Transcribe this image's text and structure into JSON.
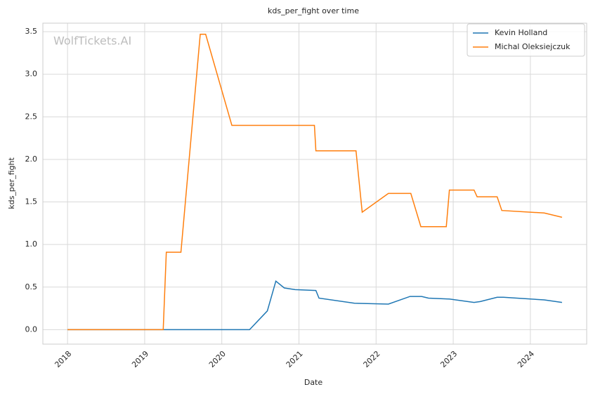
{
  "chart_data": {
    "type": "line",
    "title": "kds_per_fight over time",
    "xlabel": "Date",
    "ylabel": "kds_per_fight",
    "watermark": "WolfTickets.AI",
    "grid": true,
    "legend": "upper right",
    "xlim": [
      2017.68,
      2024.73
    ],
    "xticks": [
      2018,
      2019,
      2020,
      2021,
      2022,
      2023,
      2024
    ],
    "ylim": [
      -0.17,
      3.6
    ],
    "yticks": [
      {
        "value": 0,
        "label": "0.0"
      },
      0.5,
      {
        "value": 1,
        "label": "1.0"
      },
      1.5,
      {
        "value": 2,
        "label": "2.0"
      },
      2.5,
      {
        "value": 3,
        "label": "3.0"
      },
      3.5
    ],
    "series": [
      {
        "name": "Kevin Holland",
        "color": "#1f77b4",
        "x": [
          2018.0,
          2020.36,
          2020.59,
          2020.7,
          2020.81,
          2020.95,
          2021.22,
          2021.26,
          2021.72,
          2022.16,
          2022.44,
          2022.59,
          2022.68,
          2022.95,
          2023.27,
          2023.35,
          2023.57,
          2023.65,
          2024.18,
          2024.41
        ],
        "values": [
          0,
          0,
          0.22,
          0.57,
          0.49,
          0.47,
          0.46,
          0.37,
          0.31,
          0.3,
          0.39,
          0.39,
          0.37,
          0.36,
          0.32,
          0.33,
          0.38,
          0.38,
          0.35,
          0.32
        ]
      },
      {
        "name": "Michal Oleksiejczuk",
        "color": "#ff7f0e",
        "x": [
          2018.0,
          2019.24,
          2019.28,
          2019.47,
          2019.72,
          2019.79,
          2020.13,
          2021.2,
          2021.22,
          2021.74,
          2021.82,
          2022.16,
          2022.45,
          2022.58,
          2022.91,
          2022.95,
          2023.27,
          2023.31,
          2023.57,
          2023.63,
          2024.18,
          2024.41
        ],
        "values": [
          0,
          0,
          0.91,
          0.91,
          3.47,
          3.47,
          2.4,
          2.4,
          2.1,
          2.1,
          1.38,
          1.6,
          1.6,
          1.21,
          1.21,
          1.64,
          1.64,
          1.56,
          1.56,
          1.4,
          1.37,
          1.32
        ]
      }
    ]
  }
}
